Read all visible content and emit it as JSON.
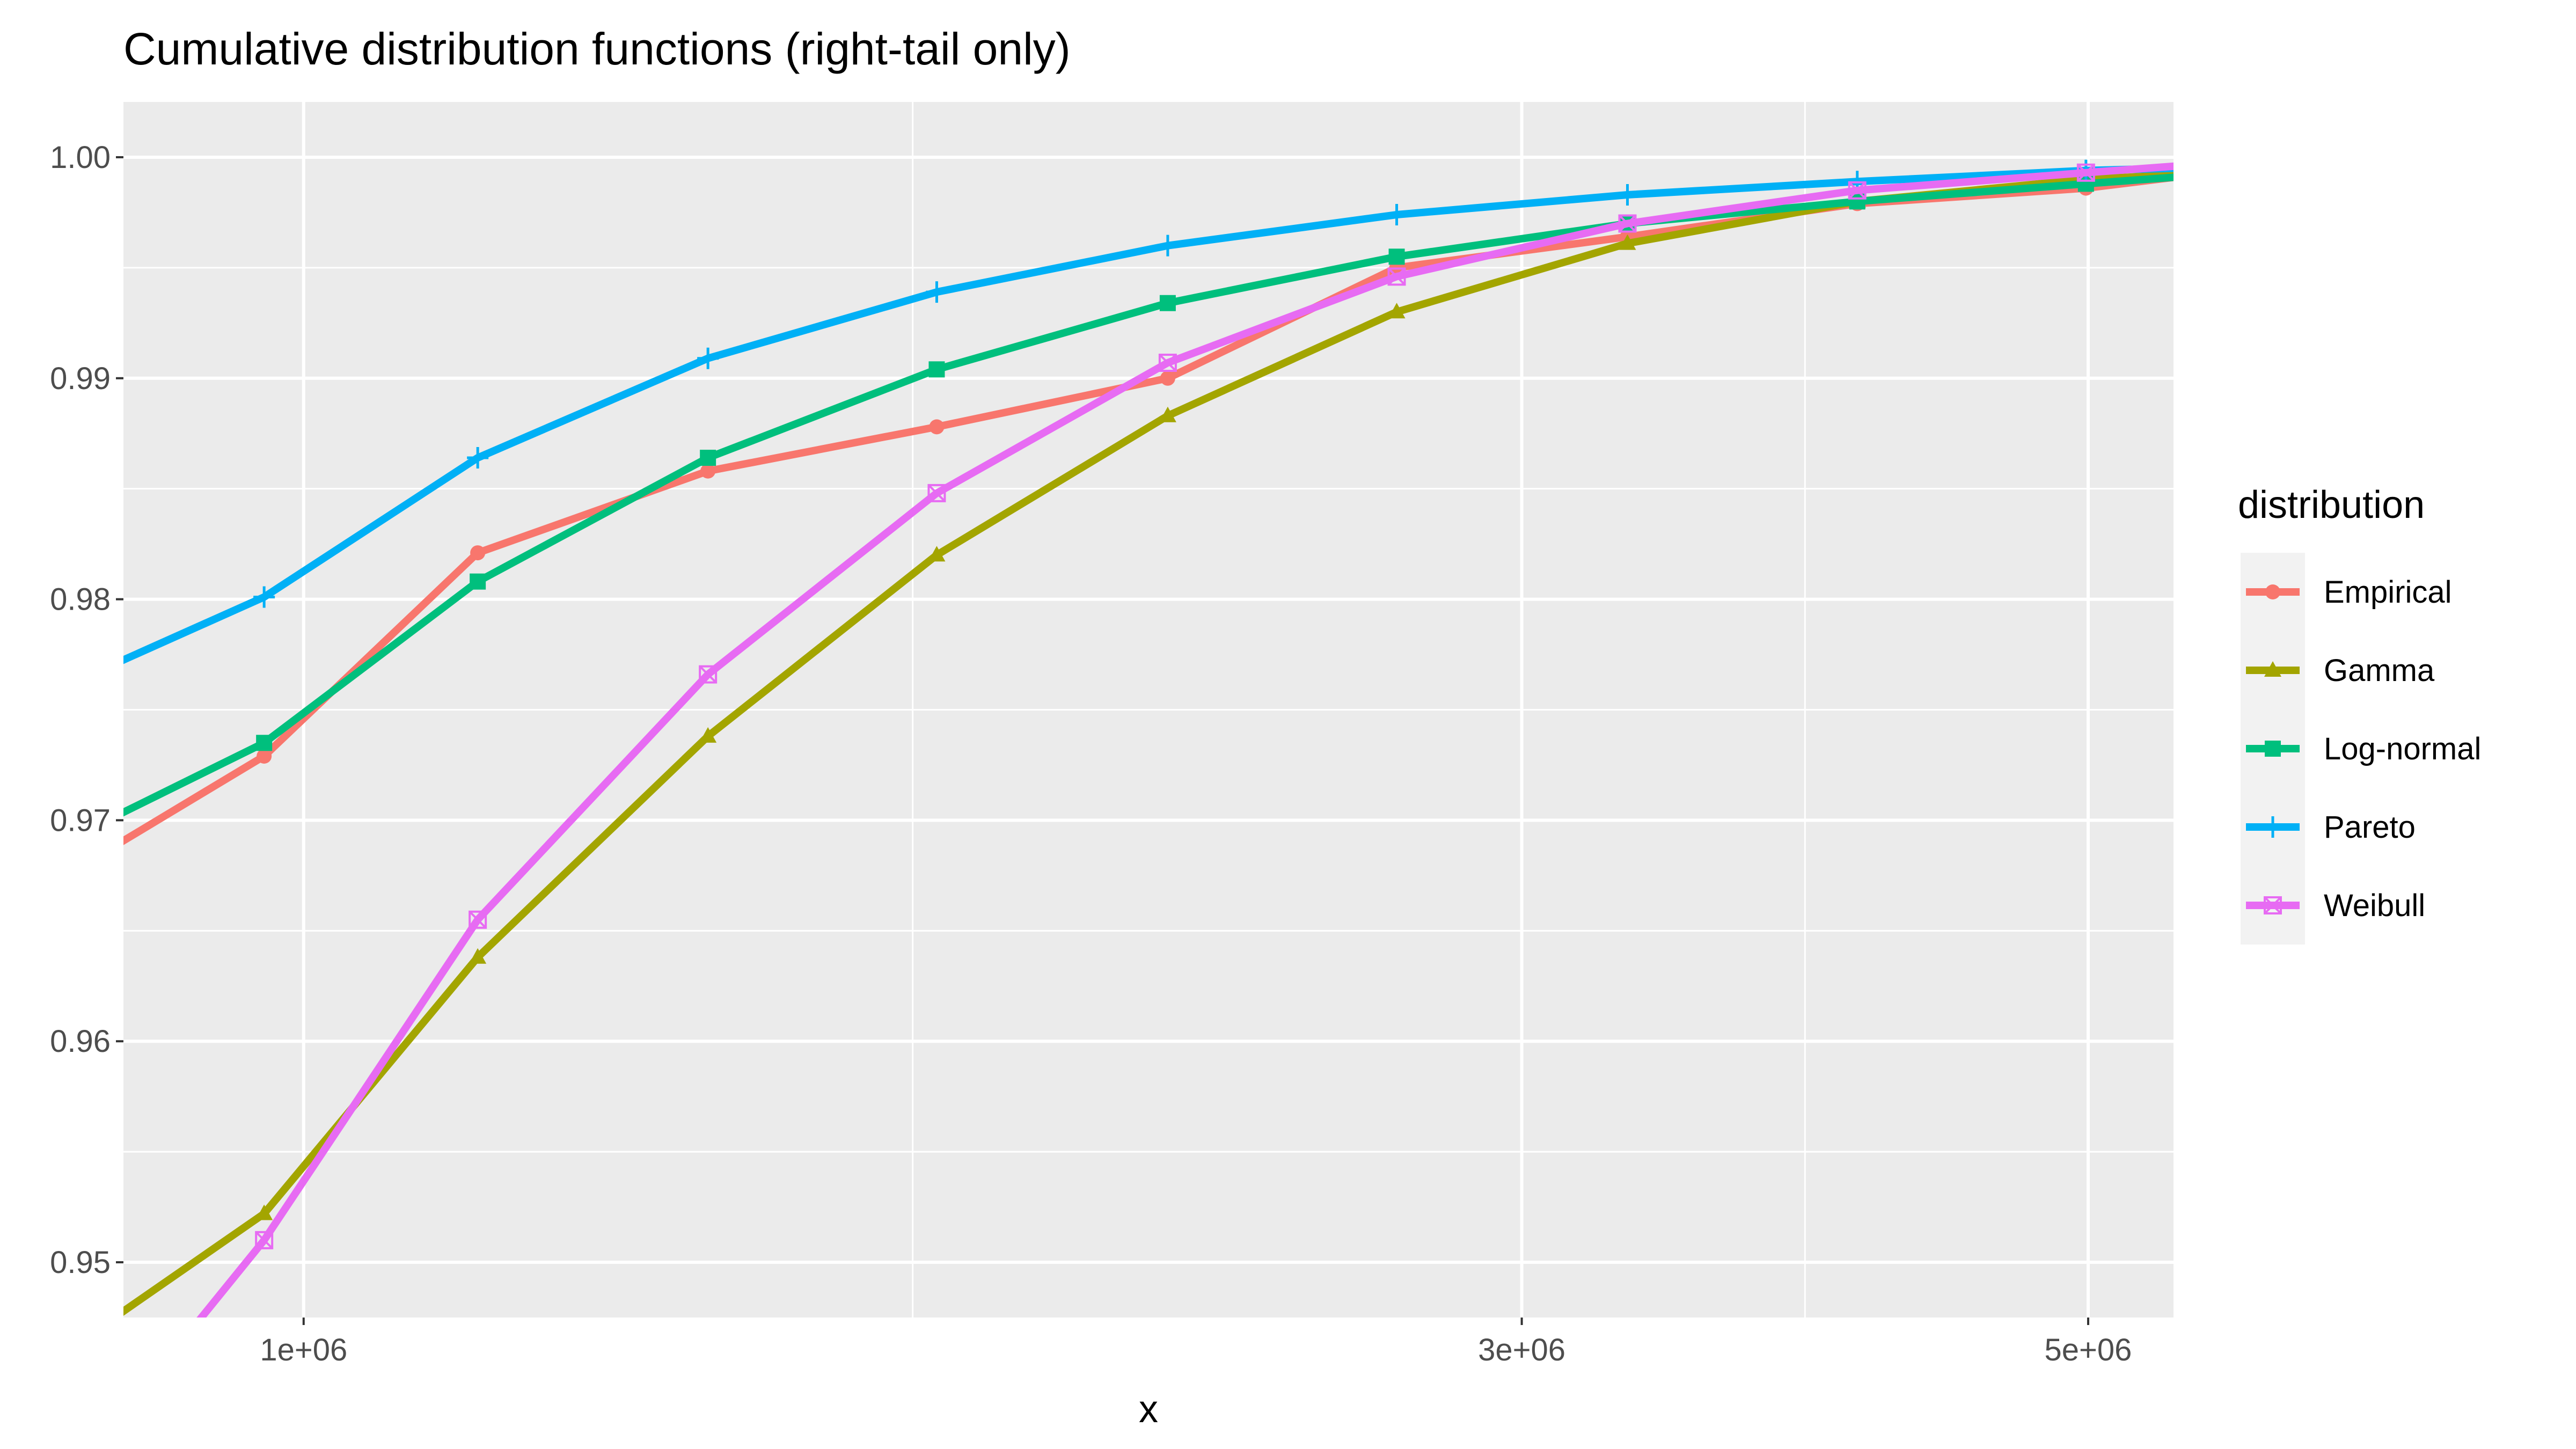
{
  "chart_data": {
    "type": "line",
    "title": "Cumulative distribution functions (right-tail only)",
    "xlabel": "x",
    "ylabel": "",
    "x_scale": "log",
    "xlim": [
      850000,
      5400000
    ],
    "ylim": [
      0.9475,
      1.0025
    ],
    "x_ticks": [
      1000000,
      3000000,
      5000000
    ],
    "x_tick_labels": [
      "1e+06",
      "3e+06",
      "5e+06"
    ],
    "x_minor_ticks": [
      1732050,
      3872983
    ],
    "y_ticks": [
      0.95,
      0.96,
      0.97,
      0.98,
      0.99,
      1.0
    ],
    "y_tick_labels": [
      "0.95",
      "0.96",
      "0.97",
      "0.98",
      "0.99",
      "1.00"
    ],
    "grid": true,
    "legend": {
      "title": "distribution",
      "position": "right"
    },
    "x": [
      965000,
      1170000,
      1440000,
      1770000,
      2180000,
      2680000,
      3300000,
      4060000,
      4990000
    ],
    "series": [
      {
        "name": "Empirical",
        "color": "#F8766D",
        "marker": "circle",
        "y_left_edge": 0.969,
        "values": [
          0.9729,
          0.9821,
          0.9858,
          0.9878,
          0.99,
          0.995,
          0.9964,
          0.9979,
          0.9986
        ],
        "y_right_edge": 0.9991
      },
      {
        "name": "Gamma",
        "color": "#A3A500",
        "marker": "triangle",
        "y_left_edge": 0.9477,
        "values": [
          0.9522,
          0.9638,
          0.9738,
          0.982,
          0.9883,
          0.993,
          0.9961,
          0.998,
          0.999
        ],
        "y_right_edge": 0.9992
      },
      {
        "name": "Log-normal",
        "color": "#00BF7D",
        "marker": "square",
        "y_left_edge": 0.9703,
        "values": [
          0.9735,
          0.9808,
          0.9864,
          0.9904,
          0.9934,
          0.9955,
          0.997,
          0.998,
          0.9988
        ],
        "y_right_edge": 0.9991
      },
      {
        "name": "Pareto",
        "color": "#00B0F6",
        "marker": "plus",
        "y_left_edge": 0.9772,
        "values": [
          0.9801,
          0.9864,
          0.9909,
          0.9939,
          0.996,
          0.9974,
          0.9983,
          0.9989,
          0.9994
        ],
        "y_right_edge": 0.9995
      },
      {
        "name": "Weibull",
        "color": "#E76BF3",
        "marker": "square-cross",
        "y_left_edge": 0.943,
        "values": [
          0.951,
          0.9655,
          0.9766,
          0.9848,
          0.9907,
          0.9946,
          0.997,
          0.9985,
          0.9993
        ],
        "y_right_edge": 0.9996
      }
    ]
  }
}
